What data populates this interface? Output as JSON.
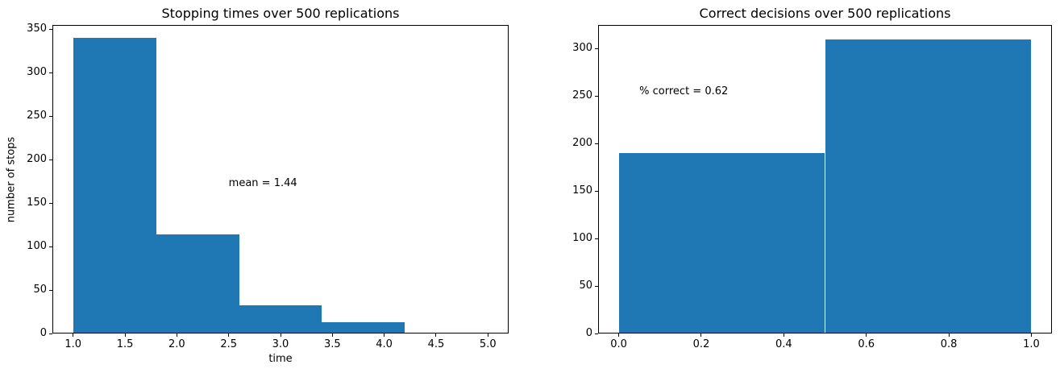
{
  "figure": {
    "background": "#ffffff",
    "bar_color": "#1f77b4",
    "axis_color": "#000000",
    "text_color": "#000000"
  },
  "chart_data": [
    {
      "type": "bar",
      "subtype": "histogram",
      "title": "Stopping times over 500 replications",
      "xlabel": "time",
      "ylabel": "number of stops",
      "bin_edges": [
        1.0,
        1.8,
        2.6,
        3.4,
        4.2,
        5.0
      ],
      "counts": [
        340,
        114,
        32,
        13,
        1
      ],
      "xlim": [
        0.8,
        5.2
      ],
      "ylim": [
        0,
        355
      ],
      "xticks": {
        "values": [
          1.0,
          1.5,
          2.0,
          2.5,
          3.0,
          3.5,
          4.0,
          4.5,
          5.0
        ],
        "labels": [
          "1.0",
          "1.5",
          "2.0",
          "2.5",
          "3.0",
          "3.5",
          "4.0",
          "4.5",
          "5.0"
        ]
      },
      "yticks": {
        "values": [
          0,
          50,
          100,
          150,
          200,
          250,
          300,
          350
        ],
        "labels": [
          "0",
          "50",
          "100",
          "150",
          "200",
          "250",
          "300",
          "350"
        ]
      },
      "annotation": {
        "text": "mean = 1.44",
        "x": 2.5,
        "y": 170
      },
      "grid": false,
      "legend": false
    },
    {
      "type": "bar",
      "subtype": "histogram",
      "title": "Correct decisions over 500 replications",
      "xlabel": "",
      "ylabel": "",
      "bin_edges": [
        0.0,
        0.5,
        1.0
      ],
      "counts": [
        190,
        310
      ],
      "xlim": [
        -0.05,
        1.05
      ],
      "ylim": [
        0,
        325
      ],
      "xticks": {
        "values": [
          0.0,
          0.2,
          0.4,
          0.6,
          0.8,
          1.0
        ],
        "labels": [
          "0.0",
          "0.2",
          "0.4",
          "0.6",
          "0.8",
          "1.0"
        ]
      },
      "yticks": {
        "values": [
          0,
          50,
          100,
          150,
          200,
          250,
          300
        ],
        "labels": [
          "0",
          "50",
          "100",
          "150",
          "200",
          "250",
          "300"
        ]
      },
      "annotation": {
        "text": "% correct = 0.62",
        "x": 0.05,
        "y": 252
      },
      "grid": false,
      "legend": false
    }
  ]
}
